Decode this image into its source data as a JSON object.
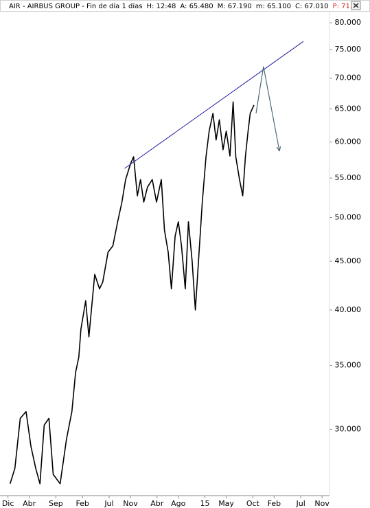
{
  "chart_data": {
    "type": "line",
    "title": "AIR - AIRBUS GROUP - Fin de día 1 días",
    "header_fields": [
      "H: 12:48",
      "A: 65.480",
      "M: 67.190",
      "m: 65.100",
      "C: 67.010"
    ],
    "header_alert": "P: 71.",
    "header_alert_color": "#e02020",
    "log_scale": true,
    "grid": false,
    "xlim": [
      -1.5,
      60.4
    ],
    "ylim": [
      25.6,
      81.5
    ],
    "xticks": [
      {
        "value": 0,
        "label": "Dic"
      },
      {
        "value": 4,
        "label": "Abr"
      },
      {
        "value": 9,
        "label": "Sep"
      },
      {
        "value": 14,
        "label": "Feb"
      },
      {
        "value": 19,
        "label": "Jul"
      },
      {
        "value": 23,
        "label": "Nov"
      },
      {
        "value": 28,
        "label": "Abr"
      },
      {
        "value": 32,
        "label": "Ago"
      },
      {
        "value": 37,
        "label": "15"
      },
      {
        "value": 41,
        "label": "May"
      },
      {
        "value": 46,
        "label": "Oct"
      },
      {
        "value": 50,
        "label": "Feb"
      },
      {
        "value": 55,
        "label": "Jul"
      },
      {
        "value": 59,
        "label": "Nov"
      }
    ],
    "yticks": [
      {
        "value": 30,
        "label": "30.000"
      },
      {
        "value": 35,
        "label": "35.000"
      },
      {
        "value": 40,
        "label": "40.000"
      },
      {
        "value": 45,
        "label": "45.000"
      },
      {
        "value": 50,
        "label": "50.000"
      },
      {
        "value": 55,
        "label": "55.000"
      },
      {
        "value": 60,
        "label": "60.000"
      },
      {
        "value": 65,
        "label": "65.000"
      },
      {
        "value": 70,
        "label": "70.000"
      },
      {
        "value": 75,
        "label": "75.000"
      },
      {
        "value": 80,
        "label": "80.000"
      }
    ],
    "series": [
      {
        "color": "#000000",
        "x": [
          0.4,
          1.3,
          2.3,
          3.4,
          4.3,
          5.2,
          6.0,
          6.8,
          7.7,
          8.5,
          9.8,
          11.0,
          12.0,
          12.7,
          13.3,
          13.7,
          14.6,
          15.2,
          16.3,
          17.2,
          17.8,
          18.8,
          19.7,
          20.6,
          21.4,
          22.1,
          23.0,
          23.6,
          24.3,
          24.9,
          25.5,
          26.2,
          27.1,
          27.9,
          28.8,
          29.4,
          30.1,
          30.7,
          31.4,
          32.0,
          32.6,
          33.3,
          33.9,
          34.6,
          35.2,
          35.9,
          36.5,
          37.2,
          37.8,
          38.5,
          39.1,
          39.7,
          40.4,
          41.0,
          41.7,
          42.3,
          42.8,
          43.5,
          44.1,
          44.6,
          45.1,
          45.5,
          46.2
        ],
        "values": [
          26.3,
          27.3,
          30.8,
          31.3,
          28.8,
          27.3,
          26.3,
          30.3,
          30.8,
          26.9,
          26.3,
          29.3,
          31.3,
          34.4,
          35.7,
          38.2,
          40.9,
          37.5,
          43.6,
          42.1,
          42.8,
          46.0,
          46.7,
          49.5,
          51.9,
          54.8,
          56.9,
          57.9,
          52.7,
          54.8,
          51.9,
          53.8,
          54.8,
          51.9,
          54.8,
          48.5,
          46.0,
          42.1,
          47.8,
          49.5,
          46.7,
          42.1,
          49.5,
          45.0,
          40.0,
          46.0,
          51.9,
          57.9,
          61.6,
          64.3,
          60.3,
          63.3,
          58.9,
          61.6,
          58.0,
          66.1,
          57.9,
          54.8,
          52.7,
          57.9,
          61.6,
          64.3,
          65.6
        ]
      }
    ],
    "trendline": {
      "color": "#1a1aa0",
      "x": [
        21.9,
        55.5
      ],
      "values": [
        56.3,
        76.5
      ]
    },
    "projection": {
      "color": "#4a6a78",
      "x": [
        46.6,
        48.0,
        51.0
      ],
      "values": [
        64.3,
        72.0,
        58.7
      ]
    }
  }
}
